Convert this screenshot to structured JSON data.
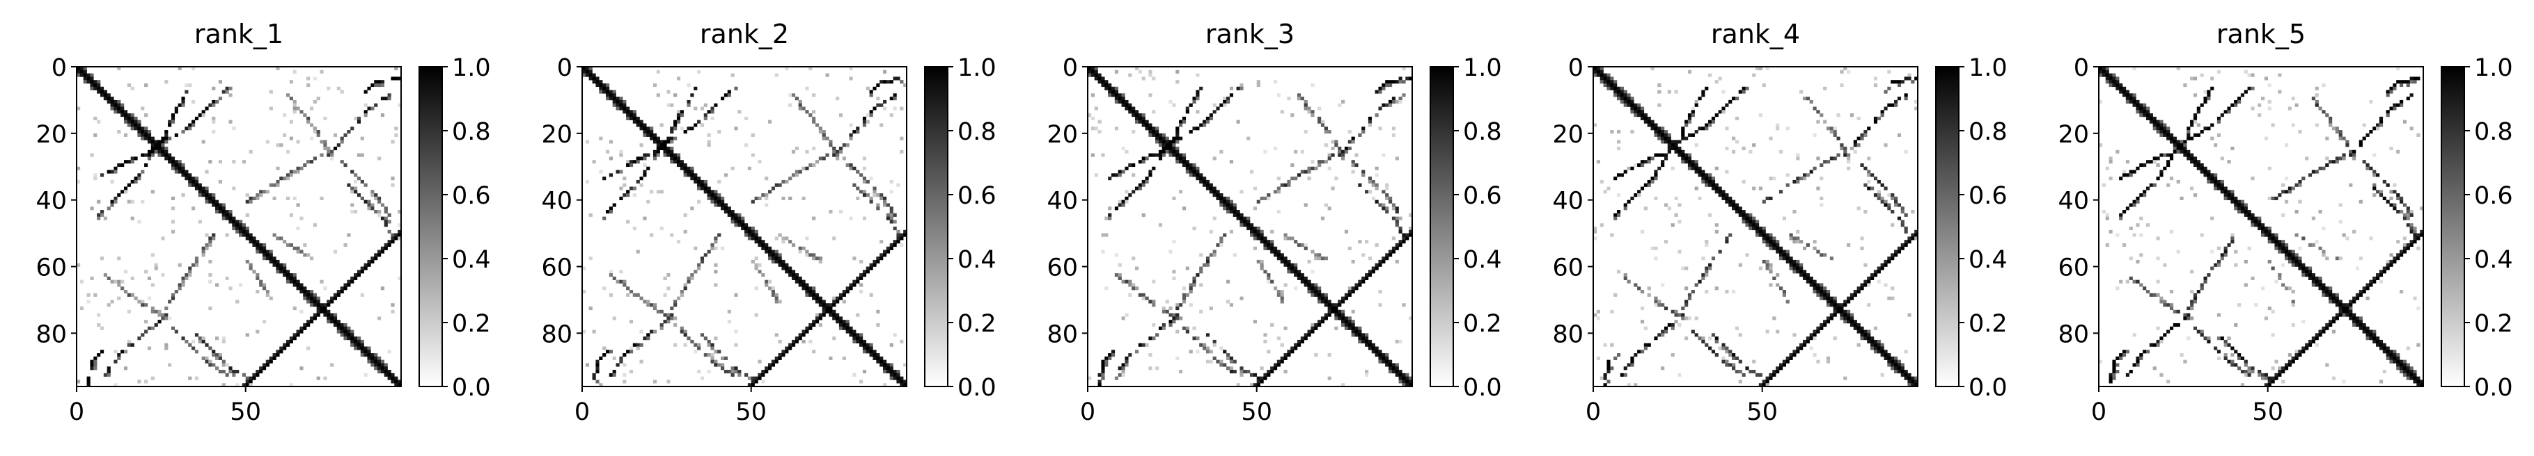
{
  "chart_data": [
    {
      "type": "heatmap",
      "title": "rank_1",
      "variant": 0,
      "xticks": [
        0,
        50
      ],
      "yticks": [
        0,
        20,
        40,
        60,
        80
      ],
      "xlim": [
        0,
        96
      ],
      "ylim": [
        96,
        0
      ],
      "colorbar": {
        "ticks": [
          "0.0",
          "0.2",
          "0.4",
          "0.6",
          "0.8",
          "1.0"
        ],
        "range": [
          0.0,
          1.0
        ],
        "colormap": "gray_r"
      }
    },
    {
      "type": "heatmap",
      "title": "rank_2",
      "variant": 1,
      "xticks": [
        0,
        50
      ],
      "yticks": [
        0,
        20,
        40,
        60,
        80
      ],
      "xlim": [
        0,
        96
      ],
      "ylim": [
        96,
        0
      ],
      "colorbar": {
        "ticks": [
          "0.0",
          "0.2",
          "0.4",
          "0.6",
          "0.8",
          "1.0"
        ],
        "range": [
          0.0,
          1.0
        ],
        "colormap": "gray_r"
      }
    },
    {
      "type": "heatmap",
      "title": "rank_3",
      "variant": 2,
      "xticks": [
        0,
        50
      ],
      "yticks": [
        0,
        20,
        40,
        60,
        80
      ],
      "xlim": [
        0,
        96
      ],
      "ylim": [
        96,
        0
      ],
      "colorbar": {
        "ticks": [
          "0.0",
          "0.2",
          "0.4",
          "0.6",
          "0.8",
          "1.0"
        ],
        "range": [
          0.0,
          1.0
        ],
        "colormap": "gray_r"
      }
    },
    {
      "type": "heatmap",
      "title": "rank_4",
      "variant": 3,
      "xticks": [
        0,
        50
      ],
      "yticks": [
        0,
        20,
        40,
        60,
        80
      ],
      "xlim": [
        0,
        96
      ],
      "ylim": [
        96,
        0
      ],
      "colorbar": {
        "ticks": [
          "0.0",
          "0.2",
          "0.4",
          "0.6",
          "0.8",
          "1.0"
        ],
        "range": [
          0.0,
          1.0
        ],
        "colormap": "gray_r"
      }
    },
    {
      "type": "heatmap",
      "title": "rank_5",
      "variant": 4,
      "xticks": [
        0,
        50
      ],
      "yticks": [
        0,
        20,
        40,
        60,
        80
      ],
      "xlim": [
        0,
        96
      ],
      "ylim": [
        96,
        0
      ],
      "colorbar": {
        "ticks": [
          "0.0",
          "0.2",
          "0.4",
          "0.6",
          "0.8",
          "1.0"
        ],
        "range": [
          0.0,
          1.0
        ],
        "colormap": "gray_r"
      }
    }
  ],
  "structure": {
    "size": 96,
    "main_diagonal": {
      "from": 0,
      "to": 95,
      "value": 1.0
    },
    "anti_diagonal": {
      "from": [
        50,
        95
      ],
      "to": [
        95,
        50
      ],
      "value": 1.0
    },
    "features": [
      {
        "name": "upper-left-arc",
        "points": [
          [
            6,
            33
          ],
          [
            16,
            27
          ],
          [
            24,
            24
          ]
        ],
        "value": 1.0
      },
      {
        "name": "left-arc",
        "points": [
          [
            22,
            24
          ],
          [
            33,
            17
          ],
          [
            44,
            6
          ]
        ],
        "value": 1.0
      },
      {
        "name": "cross-block",
        "points": [
          [
            18,
            18
          ],
          [
            28,
            28
          ]
        ],
        "value": 0.7
      },
      {
        "name": "upper-right-arc",
        "points": [
          [
            8,
            62
          ],
          [
            18,
            70
          ],
          [
            26,
            75
          ]
        ],
        "value": 0.6
      },
      {
        "name": "right-upper-arc",
        "points": [
          [
            28,
            78
          ],
          [
            38,
            88
          ],
          [
            44,
            92
          ]
        ],
        "value": 0.7
      },
      {
        "name": "center-left-arc",
        "points": [
          [
            50,
            40
          ],
          [
            62,
            32
          ],
          [
            72,
            26
          ]
        ],
        "value": 0.7
      },
      {
        "name": "lower-left-arc",
        "points": [
          [
            74,
            26
          ],
          [
            86,
            12
          ],
          [
            92,
            8
          ]
        ],
        "value": 0.9
      },
      {
        "name": "lower-middle-arc",
        "points": [
          [
            80,
            35
          ],
          [
            90,
            45
          ],
          [
            93,
            50
          ]
        ],
        "value": 0.8
      },
      {
        "name": "center-right-arc",
        "points": [
          [
            50,
            58
          ],
          [
            55,
            66
          ],
          [
            57,
            70
          ]
        ],
        "value": 0.5
      },
      {
        "name": "top-right-step",
        "points": [
          [
            3,
            95
          ],
          [
            4,
            88
          ],
          [
            7,
            85
          ]
        ],
        "value": 1.0
      }
    ]
  }
}
